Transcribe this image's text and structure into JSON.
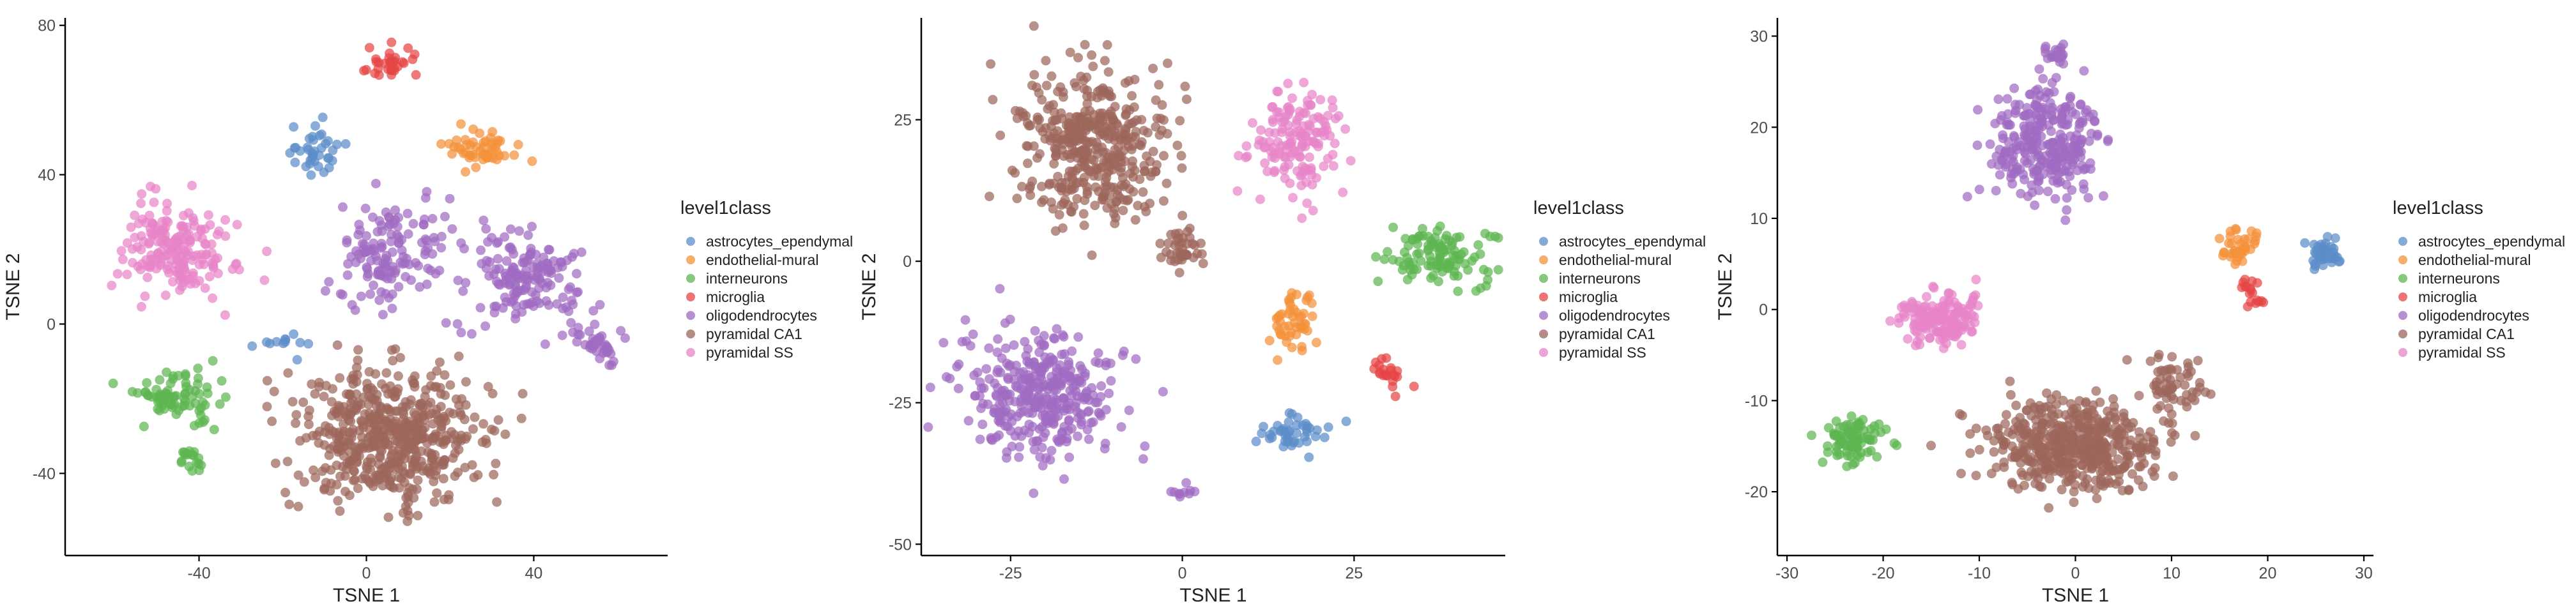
{
  "colors": {
    "astrocytes_ependymal": "#5b8ec9",
    "endothelial-mural": "#f4923a",
    "interneurons": "#5db651",
    "microglia": "#e64545",
    "oligodendrocytes": "#9f6bc2",
    "pyramidal CA1": "#9c665c",
    "pyramidal SS": "#e785c7"
  },
  "chart_data": [
    {
      "type": "scatter",
      "xlabel": "TSNE 1",
      "ylabel": "TSNE 2",
      "xlim": [
        -72,
        72
      ],
      "ylim": [
        -62,
        82
      ],
      "xticks": [
        -40,
        0,
        40
      ],
      "yticks": [
        -40,
        0,
        40,
        80
      ],
      "legend": {
        "title": "level1class",
        "entries": [
          "astrocytes_ependymal",
          "endothelial-mural",
          "interneurons",
          "microglia",
          "oligodendrocytes",
          "pyramidal CA1",
          "pyramidal SS"
        ],
        "position": "right"
      },
      "clusters": [
        {
          "series": "pyramidal CA1",
          "center": [
            5,
            -30
          ],
          "spread": [
            20,
            16
          ],
          "n": 560
        },
        {
          "series": "oligodendrocytes",
          "center": [
            38,
            12
          ],
          "spread": [
            13,
            11
          ],
          "n": 160
        },
        {
          "series": "oligodendrocytes",
          "center": [
            5,
            18
          ],
          "spread": [
            11,
            14
          ],
          "n": 140
        },
        {
          "series": "oligodendrocytes",
          "center": [
            55,
            -5
          ],
          "spread": [
            6,
            5
          ],
          "n": 40
        },
        {
          "series": "pyramidal SS",
          "center": [
            -45,
            20
          ],
          "spread": [
            12,
            11
          ],
          "n": 190
        },
        {
          "series": "interneurons",
          "center": [
            -45,
            -20
          ],
          "spread": [
            9,
            7
          ],
          "n": 80
        },
        {
          "series": "interneurons",
          "center": [
            -42,
            -36
          ],
          "spread": [
            3,
            4
          ],
          "n": 18
        },
        {
          "series": "astrocytes_ependymal",
          "center": [
            -12,
            46
          ],
          "spread": [
            6,
            6
          ],
          "n": 38
        },
        {
          "series": "astrocytes_ependymal",
          "center": [
            -20,
            -5
          ],
          "spread": [
            6,
            4
          ],
          "n": 12
        },
        {
          "series": "endothelial-mural",
          "center": [
            28,
            47
          ],
          "spread": [
            8,
            5
          ],
          "n": 55
        },
        {
          "series": "microglia",
          "center": [
            5,
            70
          ],
          "spread": [
            6,
            4
          ],
          "n": 32
        }
      ]
    },
    {
      "type": "scatter",
      "xlabel": "TSNE 1",
      "ylabel": "TSNE 2",
      "xlim": [
        -38,
        47
      ],
      "ylim": [
        -52,
        43
      ],
      "xticks": [
        -25,
        0,
        25
      ],
      "yticks": [
        -50,
        -25,
        0,
        25
      ],
      "legend": {
        "title": "level1class",
        "entries": [
          "astrocytes_ependymal",
          "endothelial-mural",
          "interneurons",
          "microglia",
          "oligodendrocytes",
          "pyramidal CA1",
          "pyramidal SS"
        ],
        "position": "right"
      },
      "clusters": [
        {
          "series": "pyramidal CA1",
          "center": [
            -13,
            20
          ],
          "spread": [
            10,
            12
          ],
          "n": 430
        },
        {
          "series": "pyramidal CA1",
          "center": [
            0,
            2
          ],
          "spread": [
            3,
            3
          ],
          "n": 40
        },
        {
          "series": "oligodendrocytes",
          "center": [
            -20,
            -24
          ],
          "spread": [
            10,
            10
          ],
          "n": 360
        },
        {
          "series": "oligodendrocytes",
          "center": [
            0,
            -41
          ],
          "spread": [
            1.5,
            1
          ],
          "n": 10
        },
        {
          "series": "pyramidal SS",
          "center": [
            17,
            21
          ],
          "spread": [
            6,
            8
          ],
          "n": 150
        },
        {
          "series": "interneurons",
          "center": [
            37,
            1
          ],
          "spread": [
            7,
            5
          ],
          "n": 110
        },
        {
          "series": "endothelial-mural",
          "center": [
            16,
            -11
          ],
          "spread": [
            3,
            5
          ],
          "n": 50
        },
        {
          "series": "astrocytes_ependymal",
          "center": [
            17,
            -30
          ],
          "spread": [
            5,
            3
          ],
          "n": 45
        },
        {
          "series": "microglia",
          "center": [
            30,
            -20
          ],
          "spread": [
            2,
            3
          ],
          "n": 22
        }
      ]
    },
    {
      "type": "scatter",
      "xlabel": "TSNE 1",
      "ylabel": "TSNE 2",
      "xlim": [
        -31,
        31
      ],
      "ylim": [
        -27,
        32
      ],
      "xticks": [
        -30,
        -20,
        -10,
        0,
        10,
        20,
        30
      ],
      "yticks": [
        -20,
        -10,
        0,
        10,
        20,
        30
      ],
      "legend": {
        "title": "level1class",
        "entries": [
          "astrocytes_ependymal",
          "endothelial-mural",
          "interneurons",
          "microglia",
          "oligodendrocytes",
          "pyramidal CA1",
          "pyramidal SS"
        ],
        "position": "right"
      },
      "clusters": [
        {
          "series": "pyramidal CA1",
          "center": [
            0,
            -15
          ],
          "spread": [
            8,
            4
          ],
          "n": 520
        },
        {
          "series": "pyramidal CA1",
          "center": [
            10,
            -8
          ],
          "spread": [
            3,
            3
          ],
          "n": 60
        },
        {
          "series": "oligodendrocytes",
          "center": [
            -3,
            18
          ],
          "spread": [
            5,
            6
          ],
          "n": 290
        },
        {
          "series": "oligodendrocytes",
          "center": [
            -2,
            28
          ],
          "spread": [
            1.5,
            1
          ],
          "n": 20
        },
        {
          "series": "pyramidal SS",
          "center": [
            -14,
            -1
          ],
          "spread": [
            4,
            2.5
          ],
          "n": 170
        },
        {
          "series": "interneurons",
          "center": [
            -23,
            -14
          ],
          "spread": [
            3,
            2.5
          ],
          "n": 90
        },
        {
          "series": "astrocytes_ependymal",
          "center": [
            26,
            6
          ],
          "spread": [
            1.8,
            1.5
          ],
          "n": 45
        },
        {
          "series": "endothelial-mural",
          "center": [
            17,
            7
          ],
          "spread": [
            2,
            2
          ],
          "n": 40
        },
        {
          "series": "microglia",
          "center": [
            18.5,
            2
          ],
          "spread": [
            1.2,
            1.2
          ],
          "n": 18
        }
      ]
    }
  ]
}
